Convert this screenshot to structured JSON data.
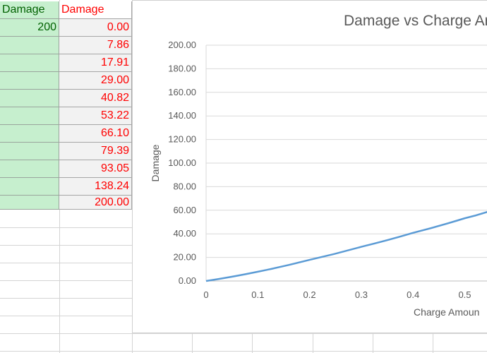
{
  "spreadsheet": {
    "column_a": {
      "header": "Damage",
      "value": "200"
    },
    "column_b": {
      "header": "Damage",
      "values": [
        "0.00",
        "7.86",
        "17.91",
        "29.00",
        "40.82",
        "53.22",
        "66.10",
        "79.39",
        "93.05",
        "138.24",
        "200.00"
      ]
    },
    "colors": {
      "green_fill": "#c6efce",
      "green_text": "#006100",
      "red_text": "#ff0000",
      "gray_fill": "#f2f2f2"
    }
  },
  "chart_data": {
    "type": "line",
    "title": "Damage vs Charge Ar",
    "xlabel": "Charge Amoun",
    "ylabel": "Damage",
    "ylim": [
      0,
      200
    ],
    "yticks": [
      "0.00",
      "20.00",
      "40.00",
      "60.00",
      "80.00",
      "100.00",
      "120.00",
      "140.00",
      "160.00",
      "180.00",
      "200.00"
    ],
    "xticks": [
      "0",
      "0.1",
      "0.2",
      "0.3",
      "0.4",
      "0.5"
    ],
    "x": [
      0,
      0.1,
      0.2,
      0.3,
      0.4,
      0.5,
      0.55
    ],
    "series": [
      {
        "values": [
          0.0,
          7.86,
          17.91,
          29.0,
          40.82,
          53.22,
          59.5
        ]
      }
    ],
    "line_color": "#5b9bd5",
    "grid": true
  }
}
